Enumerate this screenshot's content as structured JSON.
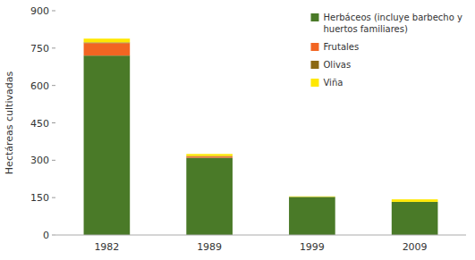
{
  "chart_data": {
    "type": "bar",
    "stacked": true,
    "categories": [
      "1982",
      "1989",
      "1999",
      "2009"
    ],
    "series": [
      {
        "name": "Herbáceos (incluye barbecho y\nhuertos familiares)",
        "color": "#4a7a28",
        "values": [
          720,
          310,
          153,
          133
        ]
      },
      {
        "name": "Frutales",
        "color": "#f26522",
        "values": [
          50,
          5,
          0,
          0
        ]
      },
      {
        "name": "Olivas",
        "color": "#8B6914",
        "values": [
          3,
          2,
          0,
          0
        ]
      },
      {
        "name": "Viña",
        "color": "#FFE800",
        "values": [
          15,
          8,
          2,
          10
        ]
      }
    ],
    "ylabel": "Hectáreas cultivadas",
    "ylim": [
      0,
      900
    ],
    "yticks": [
      0,
      150,
      300,
      450,
      600,
      750,
      900
    ],
    "grid": false,
    "legend": "upper right"
  }
}
